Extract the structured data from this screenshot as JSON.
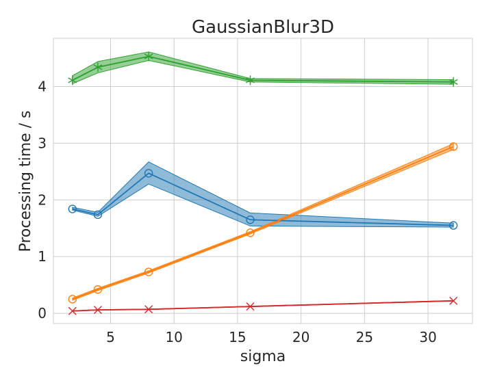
{
  "chart_data": {
    "type": "line",
    "title": "GaussianBlur3D",
    "xlabel": "sigma",
    "ylabel": "Processing time / s",
    "xlim": [
      0.5,
      33.5
    ],
    "ylim": [
      -0.18,
      4.85
    ],
    "xticks": [
      5,
      10,
      15,
      20,
      25,
      30
    ],
    "yticks": [
      0,
      1,
      2,
      3,
      4
    ],
    "grid": true,
    "x": [
      2,
      4,
      8,
      16,
      32
    ],
    "series": [
      {
        "color": "#1f77b4",
        "marker": "circle",
        "values": [
          1.84,
          1.74,
          2.47,
          1.65,
          1.55
        ],
        "lower": [
          1.82,
          1.71,
          2.28,
          1.54,
          1.52
        ],
        "upper": [
          1.87,
          1.78,
          2.67,
          1.77,
          1.59
        ]
      },
      {
        "color": "#ff7f0e",
        "marker": "circle",
        "values": [
          0.25,
          0.42,
          0.73,
          1.42,
          2.94
        ],
        "lower": [
          0.23,
          0.4,
          0.71,
          1.4,
          2.89
        ],
        "upper": [
          0.27,
          0.44,
          0.75,
          1.44,
          2.99
        ]
      },
      {
        "color": "#2ca02c",
        "marker": "star",
        "values": [
          4.11,
          4.34,
          4.53,
          4.11,
          4.08
        ],
        "lower": [
          4.05,
          4.24,
          4.46,
          4.08,
          4.04
        ],
        "upper": [
          4.19,
          4.44,
          4.61,
          4.14,
          4.12
        ]
      },
      {
        "color": "#d62728",
        "marker": "x",
        "values": [
          0.04,
          0.06,
          0.07,
          0.12,
          0.22
        ],
        "lower": [
          0.035,
          0.055,
          0.065,
          0.115,
          0.215
        ],
        "upper": [
          0.045,
          0.065,
          0.075,
          0.125,
          0.225
        ]
      }
    ]
  }
}
